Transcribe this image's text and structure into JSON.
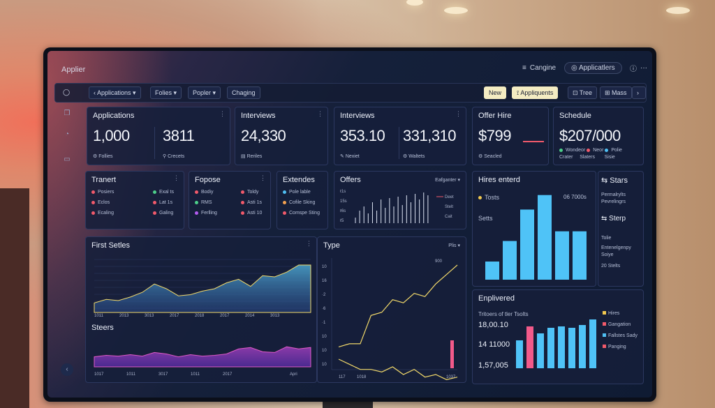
{
  "window": {
    "title": "Applier"
  },
  "topbar": {
    "engine": "Cangine",
    "applications": "Applicatlers",
    "more": "···"
  },
  "toolbar": {
    "items": [
      "Applications ▾",
      "Folies ▾",
      "Popler ▾",
      "Chaging"
    ],
    "new": "New",
    "appliquents": "Appliquents",
    "tree": "Tree",
    "mass": "Mass"
  },
  "kpi": {
    "applications": {
      "title": "Applications",
      "v1": "1,000",
      "v2": "3811",
      "f1": "Follies",
      "f2": "Crecets"
    },
    "interviews_a": {
      "title": "Interviews",
      "v1": "24,330",
      "f1": "Reriles"
    },
    "interviews_b": {
      "title": "Interviews",
      "v1": "353.10",
      "v2": "331,310",
      "f1": "Nexiet",
      "f2": "Waltets"
    },
    "offer": {
      "title": "Offer Hire",
      "v1": "$799",
      "f1": "Seacled"
    },
    "schedule": {
      "title": "Schedule",
      "v1": "$207/000",
      "l1": "Wondeor",
      "l2": "Neor",
      "l3": "Polie",
      "s1": "Crater",
      "s2": "Slaters",
      "s3": "Sisie"
    }
  },
  "tranert": {
    "title": "Tranert",
    "rows": [
      [
        "Posiers",
        "Exal ts"
      ],
      [
        "Eclos",
        "Lat 1s"
      ],
      [
        "Ecaling",
        "Galing"
      ]
    ],
    "colors": [
      "#f25a6b",
      "#4dd08a",
      "#f25a6b",
      "#f25a6b",
      "#f25a6b",
      "#f25a6b"
    ]
  },
  "fopose": {
    "title": "Fopose",
    "rows": [
      [
        "Bodiy",
        "Toldy"
      ],
      [
        "RMS",
        "Asti 1s"
      ],
      [
        "Ferlling",
        "Asti 10"
      ]
    ],
    "colors": [
      "#f25a6b",
      "#f25a6b",
      "#4dd08a",
      "#f25a6b",
      "#b35cf0",
      "#f25a6b"
    ]
  },
  "extendes": {
    "title": "Extendes",
    "rows": [
      "Pole lable",
      "Cofile Sking",
      "Comspe Sting"
    ],
    "colors": [
      "#4fbff2",
      "#f2a04f",
      "#f25a6b"
    ]
  },
  "offers": {
    "title": "Offers",
    "filter": "Eafganter ▾",
    "ylabels": [
      "ℓ1s",
      "15s",
      "ℓ6s",
      "ℓ5"
    ],
    "legend": [
      "Deet",
      "Stelt",
      "Cait"
    ]
  },
  "hires": {
    "title": "Hires enterd",
    "l1": "Tosts",
    "l2": "06 7000s",
    "l3": "Setts"
  },
  "stars": {
    "title": "Stars",
    "t1": "Permalrylts",
    "t2": "Pevrelingrs",
    "t3": "Sterp",
    "t4": "Tolie",
    "t5": "Entenelgenpy",
    "t6": "Soiye",
    "t7": "20 Stelts"
  },
  "first_series": {
    "title": "First Setles",
    "x": [
      "1011",
      "2013",
      "3013",
      "2017",
      "2018",
      "2017",
      "2014",
      "3013"
    ]
  },
  "steers": {
    "title": "Steers",
    "x": [
      "1017",
      "1011",
      "3017",
      "1011",
      "2017",
      "Apri"
    ]
  },
  "type": {
    "title": "Type",
    "filter": "Plis ▾",
    "top": "900",
    "ylabels": [
      "10",
      "16",
      "·2",
      "·6",
      "·1",
      "10",
      "10",
      "10"
    ],
    "x": [
      "117",
      "1018",
      "1037"
    ]
  },
  "enplivered": {
    "title": "Enplivered",
    "sub": "Tritoers of tler Tsolts",
    "v1": "18,00.10",
    "v2": "14 11000",
    "v3": "1,57,005",
    "legend": [
      "Hires",
      "Gangation",
      "Fallstes Sady",
      "Panging"
    ],
    "legend_colors": [
      "#f2c94f",
      "#f25a6b",
      "#4fbff2",
      "#f25a6b"
    ]
  },
  "chart_data": [
    {
      "type": "bar",
      "title": "Hires enterd",
      "categories": [
        "1",
        "2",
        "3",
        "4",
        "5",
        "6"
      ],
      "values": [
        15,
        32,
        58,
        70,
        40,
        40
      ],
      "ylim": [
        0,
        75
      ]
    },
    {
      "type": "bar",
      "title": "Offers",
      "categories": [
        "1",
        "2",
        "3",
        "4",
        "5",
        "6",
        "7",
        "8",
        "9",
        "10",
        "11",
        "12",
        "13",
        "14",
        "15",
        "16",
        "17",
        "18"
      ],
      "values": [
        8,
        18,
        24,
        14,
        30,
        18,
        34,
        22,
        36,
        24,
        38,
        26,
        40,
        30,
        42,
        34,
        44,
        40
      ],
      "ylim": [
        0,
        50
      ]
    },
    {
      "type": "area",
      "title": "First Setles",
      "values": [
        16,
        22,
        20,
        26,
        34,
        48,
        40,
        28,
        30,
        36,
        40,
        50,
        56,
        44,
        62,
        60,
        68,
        80,
        80
      ]
    },
    {
      "type": "area",
      "title": "Steers",
      "values": [
        28,
        32,
        30,
        34,
        30,
        40,
        36,
        28,
        34,
        30,
        32,
        36,
        50,
        54,
        42,
        40,
        56,
        50,
        54
      ]
    },
    {
      "type": "line",
      "title": "Type",
      "values": [
        10,
        12,
        12,
        30,
        32,
        40,
        38,
        44,
        42,
        50,
        56,
        62
      ]
    },
    {
      "type": "line",
      "title": "Type (lower)",
      "values": [
        30,
        26,
        22,
        22,
        20,
        24,
        18,
        22,
        16,
        18,
        14,
        16
      ]
    },
    {
      "type": "bar",
      "title": "Enplivered",
      "categories": [
        "1",
        "2",
        "3",
        "4",
        "5",
        "6",
        "7",
        "8"
      ],
      "values": [
        40,
        60,
        50,
        58,
        60,
        58,
        62,
        70
      ],
      "ylim": [
        0,
        80
      ]
    }
  ]
}
